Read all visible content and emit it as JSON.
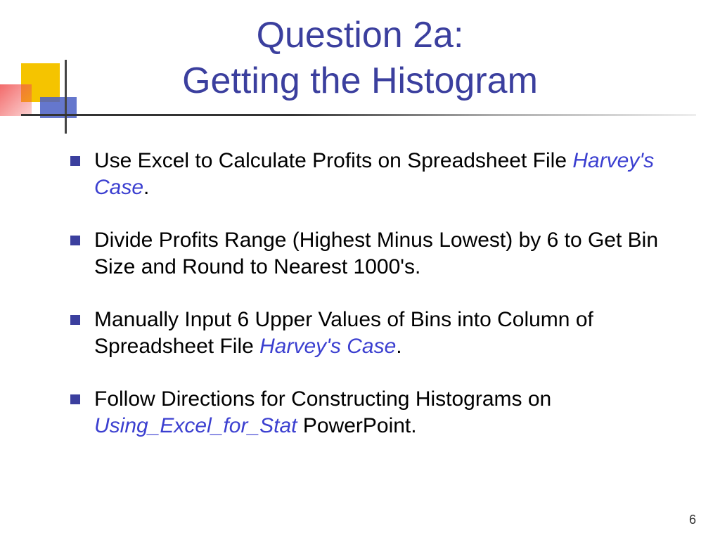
{
  "title": {
    "line1": "Question 2a:",
    "line2": "Getting the Histogram",
    "color": "#3b3f9e",
    "fontsize": 52
  },
  "bullets": [
    {
      "parts": [
        {
          "text": "Use Excel to Calculate Profits on Spreadsheet File ",
          "style": "plain"
        },
        {
          "text": "Harvey's Case",
          "style": "link"
        },
        {
          "text": ".",
          "style": "plain"
        }
      ]
    },
    {
      "parts": [
        {
          "text": "Divide Profits Range (Highest Minus Lowest) by 6 to Get Bin Size and Round to Nearest 1000's.",
          "style": "plain"
        }
      ]
    },
    {
      "parts": [
        {
          "text": "Manually Input 6 Upper Values of Bins into Column of Spreadsheet File ",
          "style": "plain"
        },
        {
          "text": "Harvey's Case",
          "style": "link"
        },
        {
          "text": ".",
          "style": "plain"
        }
      ]
    },
    {
      "parts": [
        {
          "text": "Follow Directions for Constructing Histograms on ",
          "style": "plain"
        },
        {
          "text": "Using_Excel_for_Stat",
          "style": "link"
        },
        {
          "text": " PowerPoint.",
          "style": "plain"
        }
      ]
    }
  ],
  "bullet_marker_color": "#3b3f9e",
  "link_color": "#3b3fd0",
  "body_fontsize": 30,
  "decoration": {
    "yellow": "#f5c400",
    "red": "#f05050",
    "blue": "#4a5fc4",
    "line": "#333333"
  },
  "page_number": "6",
  "background": "#ffffff"
}
